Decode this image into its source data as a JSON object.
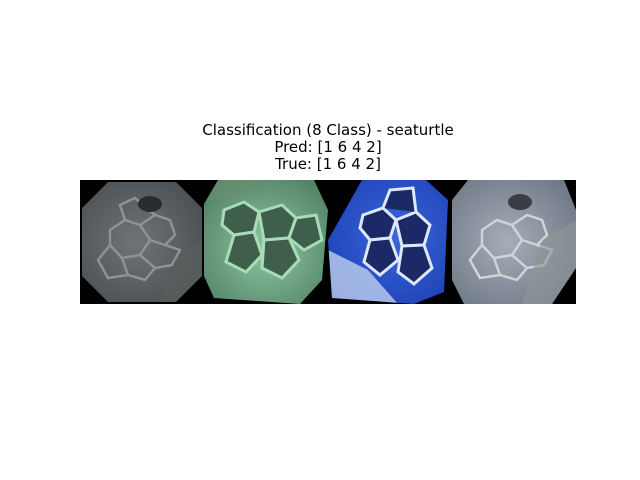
{
  "figure": {
    "title": "Classification (8 Class) - seaturtle",
    "pred_line": "Pred: [1 6 4 2]",
    "true_line": "True: [1 6 4 2]"
  },
  "images": [
    {
      "subject": "sea turtle head, gray"
    },
    {
      "subject": "sea turtle head, green"
    },
    {
      "subject": "sea turtle head, blue"
    },
    {
      "subject": "sea turtle head, pale gray"
    }
  ]
}
